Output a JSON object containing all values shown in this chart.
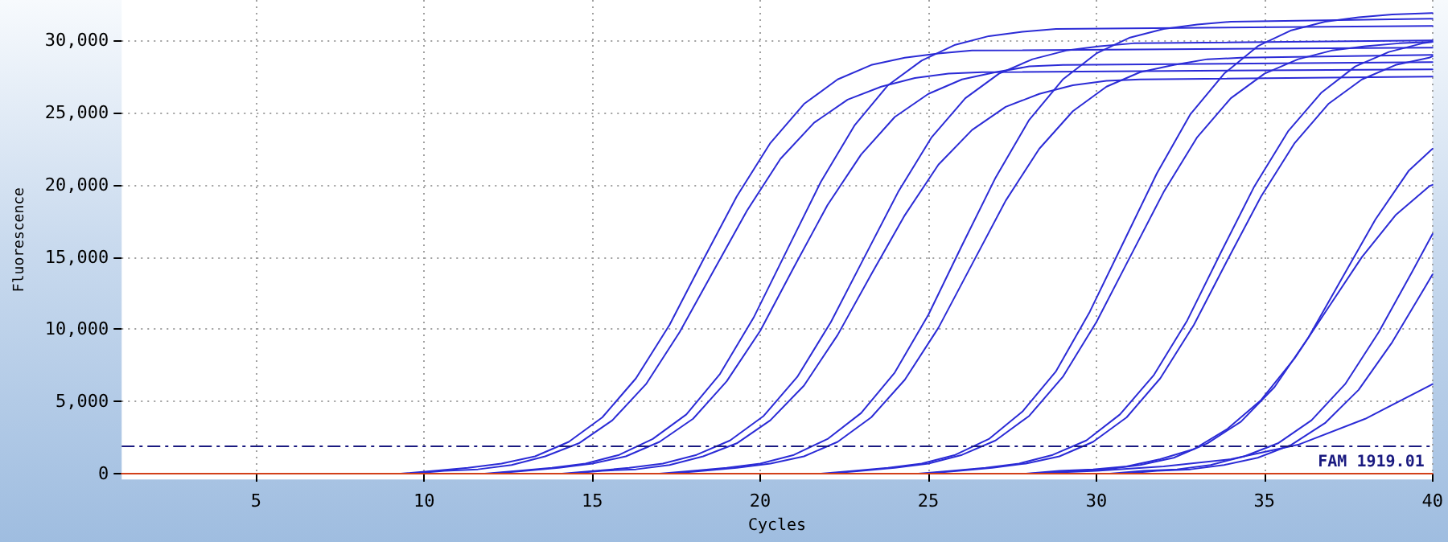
{
  "chart_data": {
    "type": "line",
    "xlabel": "Cycles",
    "ylabel": "Fluorescence",
    "xlim": [
      1,
      40
    ],
    "xticks": [
      5,
      10,
      15,
      20,
      25,
      30,
      35,
      40
    ],
    "ylim": [
      -400,
      32800
    ],
    "yticks": [
      {
        "value": 0,
        "label": "0"
      },
      {
        "value": 5000,
        "label": "5,000"
      },
      {
        "value": 10000,
        "label": "10,000"
      },
      {
        "value": 15000,
        "label": "15,000"
      },
      {
        "value": 20000,
        "label": "20,000"
      },
      {
        "value": 25000,
        "label": "25,000"
      },
      {
        "value": 30000,
        "label": "30,000"
      }
    ],
    "grid": true,
    "marker": "none",
    "line_style": "solid",
    "ref_lines": [
      {
        "axis": "y",
        "value": 1919.01,
        "label": "FAM 1919.01",
        "color": "#1a1a80",
        "line_style": "dashdot"
      }
    ],
    "series": [
      {
        "color": "#2b2bd6",
        "x": [
          9.3,
          10.3,
          11.3,
          12.3,
          13.3,
          14.3,
          15.3,
          16.3,
          17.3,
          18.3,
          19.3,
          20.3,
          21.3,
          22.3,
          23.3,
          24.3,
          25.3,
          26.3,
          40
        ],
        "values": [
          0,
          200,
          400,
          700,
          1200,
          2200,
          3900,
          6600,
          10300,
          14800,
          19200,
          22900,
          25600,
          27300,
          28300,
          28800,
          29100,
          29300,
          29500
        ]
      },
      {
        "color": "#2b2bd6",
        "x": [
          9.6,
          10.6,
          11.6,
          12.6,
          13.6,
          14.6,
          15.6,
          16.6,
          17.6,
          18.6,
          19.6,
          20.6,
          21.6,
          22.6,
          23.6,
          24.6,
          25.6,
          26.6,
          40
        ],
        "values": [
          0,
          200,
          300,
          600,
          1200,
          2100,
          3700,
          6200,
          9800,
          14000,
          18200,
          21800,
          24300,
          25900,
          26800,
          27400,
          27700,
          27800,
          28000
        ]
      },
      {
        "color": "#2b2bd6",
        "x": [
          11.8,
          12.8,
          13.8,
          14.8,
          15.8,
          16.8,
          17.8,
          18.8,
          19.8,
          20.8,
          21.8,
          22.8,
          23.8,
          24.8,
          25.8,
          26.8,
          27.8,
          28.8,
          40
        ],
        "values": [
          0,
          200,
          400,
          700,
          1300,
          2400,
          4100,
          6900,
          10800,
          15500,
          20200,
          24100,
          26900,
          28600,
          29700,
          30300,
          30600,
          30800,
          31000
        ]
      },
      {
        "color": "#2b2bd6",
        "x": [
          12,
          13,
          14,
          15,
          16,
          17,
          18,
          19,
          20,
          21,
          22,
          23,
          24,
          25,
          26,
          27,
          28,
          29,
          40
        ],
        "values": [
          0,
          200,
          400,
          700,
          1200,
          2200,
          3800,
          6400,
          9900,
          14300,
          18600,
          22100,
          24700,
          26300,
          27300,
          27800,
          28200,
          28300,
          28500
        ]
      },
      {
        "color": "#2b2bd6",
        "x": [
          14.1,
          15.1,
          16.1,
          17.1,
          18.1,
          19.1,
          20.1,
          21.1,
          22.1,
          23.1,
          24.1,
          25.1,
          26.1,
          27.1,
          28.1,
          29.1,
          30.1,
          31.1,
          40
        ],
        "values": [
          0,
          200,
          400,
          700,
          1300,
          2300,
          4000,
          6700,
          10500,
          15000,
          19500,
          23300,
          26000,
          27700,
          28700,
          29300,
          29600,
          29800,
          30000
        ]
      },
      {
        "color": "#2b2bd6",
        "x": [
          14.3,
          15.3,
          16.3,
          17.3,
          18.3,
          19.3,
          20.3,
          21.3,
          22.3,
          23.3,
          24.3,
          25.3,
          26.3,
          27.3,
          28.3,
          29.3,
          30.3,
          31.3,
          40
        ],
        "values": [
          0,
          200,
          300,
          600,
          1200,
          2100,
          3700,
          6100,
          9600,
          13800,
          17900,
          21400,
          23800,
          25400,
          26300,
          26900,
          27200,
          27300,
          27500
        ]
      },
      {
        "color": "#2b2bd6",
        "x": [
          17,
          18,
          19,
          20,
          21,
          22,
          23,
          24,
          25,
          26,
          27,
          28,
          29,
          30,
          31,
          32,
          33,
          34,
          40
        ],
        "values": [
          0,
          200,
          400,
          700,
          1300,
          2400,
          4200,
          7000,
          11000,
          15800,
          20500,
          24500,
          27300,
          29100,
          30200,
          30800,
          31100,
          31300,
          31500
        ]
      },
      {
        "color": "#2b2bd6",
        "x": [
          17.3,
          18.3,
          19.3,
          20.3,
          21.3,
          22.3,
          23.3,
          24.3,
          25.3,
          26.3,
          27.3,
          28.3,
          29.3,
          30.3,
          31.3,
          32.3,
          33.3,
          34.3,
          40
        ],
        "values": [
          0,
          200,
          400,
          700,
          1200,
          2200,
          3900,
          6500,
          10100,
          14500,
          18900,
          22500,
          25100,
          26800,
          27800,
          28300,
          28700,
          28800,
          29000
        ]
      },
      {
        "color": "#2b2bd6",
        "x": [
          21.8,
          22.8,
          23.8,
          24.8,
          25.8,
          26.8,
          27.8,
          28.8,
          29.8,
          30.8,
          31.8,
          32.8,
          33.8,
          34.8,
          35.8,
          36.8,
          37.8,
          38.8,
          40
        ],
        "values": [
          0,
          200,
          400,
          700,
          1300,
          2400,
          4300,
          7100,
          11200,
          16000,
          20800,
          24900,
          27700,
          29600,
          30700,
          31300,
          31600,
          31800,
          31900
        ]
      },
      {
        "color": "#2b2bd6",
        "x": [
          22,
          23,
          24,
          25,
          26,
          27,
          28,
          29,
          30,
          31,
          32,
          33,
          34,
          35,
          36,
          37,
          38,
          39,
          40
        ],
        "values": [
          0,
          200,
          400,
          700,
          1300,
          2300,
          4000,
          6700,
          10500,
          15000,
          19500,
          23300,
          26000,
          27700,
          28700,
          29300,
          29600,
          29800,
          29900
        ]
      },
      {
        "color": "#2b2bd6",
        "x": [
          24.7,
          25.7,
          26.7,
          27.7,
          28.7,
          29.7,
          30.7,
          31.7,
          32.7,
          33.7,
          34.7,
          35.7,
          36.7,
          37.7,
          38.7,
          39.7,
          40
        ],
        "values": [
          0,
          200,
          400,
          700,
          1300,
          2300,
          4100,
          6800,
          10600,
          15300,
          19900,
          23700,
          26400,
          28200,
          29200,
          29800,
          29900
        ]
      },
      {
        "color": "#2b2bd6",
        "x": [
          24.9,
          25.9,
          26.9,
          27.9,
          28.9,
          29.9,
          30.9,
          31.9,
          32.9,
          33.9,
          34.9,
          35.9,
          36.9,
          37.9,
          38.9,
          39.9,
          40
        ],
        "values": [
          0,
          200,
          400,
          700,
          1200,
          2200,
          3900,
          6600,
          10300,
          14800,
          19200,
          22900,
          25600,
          27300,
          28300,
          28800,
          28900
        ]
      },
      {
        "color": "#2b2bd6",
        "x": [
          27.9,
          28.9,
          29.9,
          30.9,
          31.9,
          32.9,
          33.9,
          34.9,
          35.9,
          36.9,
          37.9,
          38.9,
          39.9,
          40
        ],
        "values": [
          0,
          200,
          300,
          500,
          1000,
          1700,
          3100,
          5100,
          8000,
          11500,
          15000,
          17900,
          19900,
          20000
        ]
      },
      {
        "color": "#2b2bd6",
        "x": [
          28.3,
          29.3,
          30.3,
          31.3,
          32.3,
          33.3,
          34.3,
          35.3,
          36.3,
          37.3,
          38.3,
          39.3,
          40
        ],
        "values": [
          0,
          200,
          300,
          600,
          1100,
          2100,
          3600,
          6000,
          9400,
          13500,
          17600,
          21000,
          22500
        ]
      },
      {
        "color": "#2b2bd6",
        "x": [
          30.4,
          31.4,
          32.4,
          33.4,
          34.4,
          35.4,
          36.4,
          37.4,
          38.4,
          39.4,
          40
        ],
        "values": [
          0,
          200,
          300,
          600,
          1200,
          2100,
          3700,
          6200,
          9800,
          14000,
          16600
        ]
      },
      {
        "color": "#2b2bd6",
        "x": [
          30.8,
          31.8,
          32.8,
          33.8,
          34.8,
          35.8,
          36.8,
          37.8,
          38.8,
          39.8,
          40
        ],
        "values": [
          0,
          200,
          300,
          600,
          1100,
          2000,
          3500,
          5800,
          9100,
          13000,
          13800
        ]
      },
      {
        "color": "#2b2bd6",
        "x": [
          28,
          30,
          32,
          34,
          36,
          38,
          40
        ],
        "values": [
          0,
          200,
          500,
          1000,
          2000,
          3800,
          6200
        ]
      },
      {
        "color": "#d2401a",
        "x": [
          1,
          40
        ],
        "values": [
          0,
          0
        ]
      }
    ]
  }
}
